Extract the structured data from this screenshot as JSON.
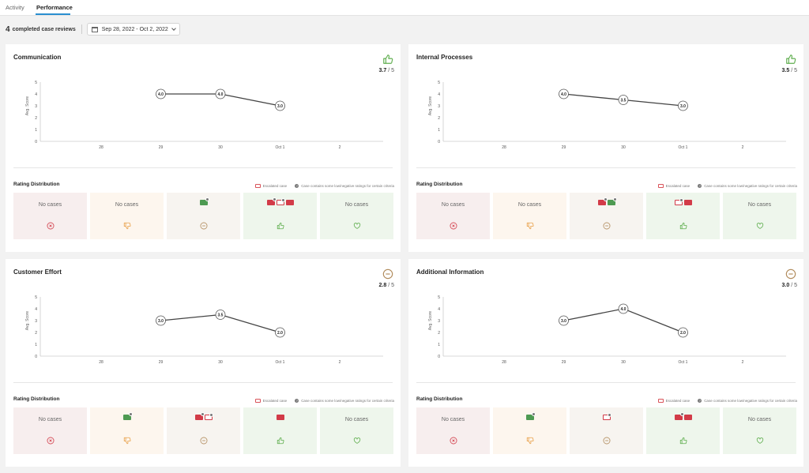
{
  "tabs": [
    {
      "label": "Activity",
      "active": false
    },
    {
      "label": "Performance",
      "active": true
    }
  ],
  "summary": {
    "count": "4",
    "label": "completed case reviews",
    "date_range": "Sep 28, 2022 - Oct 2, 2022"
  },
  "colors": {
    "accent": "#2a8fd0",
    "very_negative_bg": "#f7eeee",
    "negative_bg": "#fdf6ee",
    "neutral_bg": "#f7f4f0",
    "positive_bg": "#eef6ec",
    "very_positive_bg": "#eef6ec",
    "very_negative_icon": "#d23b48",
    "negative_icon": "#e9a14a",
    "neutral_icon": "#b08a5a",
    "positive_icon": "#5fae4e",
    "very_positive_icon": "#5fae4e"
  },
  "chart_axis": {
    "ylabel": "Avg. Score",
    "yticks": [
      "5",
      "4",
      "3",
      "2",
      "1",
      "0"
    ],
    "xticks": [
      "28",
      "29",
      "30",
      "Oct 1",
      "2"
    ]
  },
  "rating_distribution_label": "Rating Distribution",
  "legend": {
    "escalated": "Escalated case",
    "low_ratings": "Case contains some low/negative ratings for certain criteria"
  },
  "no_cases_label": "No cases",
  "cards": [
    {
      "title": "Communication",
      "score": "3.7",
      "out_of": "/ 5",
      "rating_icon": "thumbs-up-icon",
      "buckets": [
        {
          "type": "very-negative",
          "chips": []
        },
        {
          "type": "negative",
          "chips": []
        },
        {
          "type": "neutral",
          "chips": [
            {
              "kind": "green",
              "mark": true
            }
          ]
        },
        {
          "type": "positive",
          "chips": [
            {
              "kind": "red",
              "mark": true
            },
            {
              "kind": "outline",
              "mark": true
            },
            {
              "kind": "red",
              "mark": false
            }
          ]
        },
        {
          "type": "very-positive",
          "chips": []
        }
      ]
    },
    {
      "title": "Internal Processes",
      "score": "3.5",
      "out_of": "/ 5",
      "rating_icon": "thumbs-up-icon",
      "buckets": [
        {
          "type": "very-negative",
          "chips": []
        },
        {
          "type": "negative",
          "chips": []
        },
        {
          "type": "neutral",
          "chips": [
            {
              "kind": "red",
              "mark": true
            },
            {
              "kind": "green",
              "mark": true
            }
          ]
        },
        {
          "type": "positive",
          "chips": [
            {
              "kind": "outline",
              "mark": true
            },
            {
              "kind": "red",
              "mark": false
            }
          ]
        },
        {
          "type": "very-positive",
          "chips": []
        }
      ]
    },
    {
      "title": "Customer Effort",
      "score": "2.8",
      "out_of": "/ 5",
      "rating_icon": "neutral-face-icon",
      "buckets": [
        {
          "type": "very-negative",
          "chips": []
        },
        {
          "type": "negative",
          "chips": [
            {
              "kind": "green",
              "mark": true
            }
          ]
        },
        {
          "type": "neutral",
          "chips": [
            {
              "kind": "red",
              "mark": true
            },
            {
              "kind": "outline",
              "mark": true
            }
          ]
        },
        {
          "type": "positive",
          "chips": [
            {
              "kind": "red",
              "mark": false
            }
          ]
        },
        {
          "type": "very-positive",
          "chips": []
        }
      ]
    },
    {
      "title": "Additional Information",
      "score": "3.0",
      "out_of": "/ 5",
      "rating_icon": "neutral-face-icon",
      "buckets": [
        {
          "type": "very-negative",
          "chips": []
        },
        {
          "type": "negative",
          "chips": [
            {
              "kind": "green",
              "mark": true
            }
          ]
        },
        {
          "type": "neutral",
          "chips": [
            {
              "kind": "outline",
              "mark": true
            }
          ]
        },
        {
          "type": "positive",
          "chips": [
            {
              "kind": "red",
              "mark": true
            },
            {
              "kind": "red",
              "mark": false
            }
          ]
        },
        {
          "type": "very-positive",
          "chips": []
        }
      ]
    }
  ],
  "chart_data": [
    {
      "type": "line",
      "title": "Communication",
      "ylabel": "Avg. Score",
      "categories": [
        "28",
        "29",
        "30",
        "Oct 1",
        "2"
      ],
      "ylim": [
        0,
        5
      ],
      "points": [
        {
          "x": "29",
          "y": 4.0,
          "label": "4.0"
        },
        {
          "x": "30",
          "y": 4.0,
          "label": "4.0"
        },
        {
          "x": "Oct 1",
          "y": 3.0,
          "label": "3.0"
        }
      ]
    },
    {
      "type": "line",
      "title": "Internal Processes",
      "ylabel": "Avg. Score",
      "categories": [
        "28",
        "29",
        "30",
        "Oct 1",
        "2"
      ],
      "ylim": [
        0,
        5
      ],
      "points": [
        {
          "x": "29",
          "y": 4.0,
          "label": "4.0"
        },
        {
          "x": "30",
          "y": 3.5,
          "label": "3.5"
        },
        {
          "x": "Oct 1",
          "y": 3.0,
          "label": "3.0"
        }
      ]
    },
    {
      "type": "line",
      "title": "Customer Effort",
      "ylabel": "Avg. Score",
      "categories": [
        "28",
        "29",
        "30",
        "Oct 1",
        "2"
      ],
      "ylim": [
        0,
        5
      ],
      "points": [
        {
          "x": "29",
          "y": 3.0,
          "label": "3.0"
        },
        {
          "x": "30",
          "y": 3.5,
          "label": "3.5"
        },
        {
          "x": "Oct 1",
          "y": 2.0,
          "label": "2.0"
        }
      ]
    },
    {
      "type": "line",
      "title": "Additional Information",
      "ylabel": "Avg. Score",
      "categories": [
        "28",
        "29",
        "30",
        "Oct 1",
        "2"
      ],
      "ylim": [
        0,
        5
      ],
      "points": [
        {
          "x": "29",
          "y": 3.0,
          "label": "3.0"
        },
        {
          "x": "30",
          "y": 4.0,
          "label": "4.0"
        },
        {
          "x": "Oct 1",
          "y": 2.0,
          "label": "2.0"
        }
      ]
    }
  ]
}
